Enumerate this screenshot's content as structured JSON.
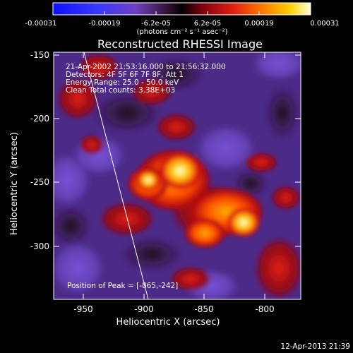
{
  "colorbar": {
    "tick_labels": [
      "-0.00031",
      "-0.00019",
      "-6.2e-05",
      "6.2e-05",
      "0.00019",
      "0.00031"
    ],
    "units_label": "(photons cm⁻² s⁻¹ asec⁻²)"
  },
  "title": "Reconstructed RHESSI Image",
  "info": {
    "line1": "21-Apr-2002 21:53:16.000 to 21:56:32.000",
    "line2": "Detectors: 4F 5F 6F 7F 8F, Att 1",
    "line3": "Energy Range: 25.0 - 50.0 keV",
    "line4": "Clean    Total counts: 3.38E+03"
  },
  "peak_label": "Position of Peak = [-865,-242]",
  "axes": {
    "xlabel": "Heliocentric X (arcsec)",
    "ylabel": "Heliocentric Y (arcsec)",
    "x_ticks": [
      "-950",
      "-900",
      "-850",
      "-800"
    ],
    "y_ticks": [
      "-150",
      "-200",
      "-250",
      "-300"
    ]
  },
  "timestamp": "12-Apr-2013 21:39"
}
